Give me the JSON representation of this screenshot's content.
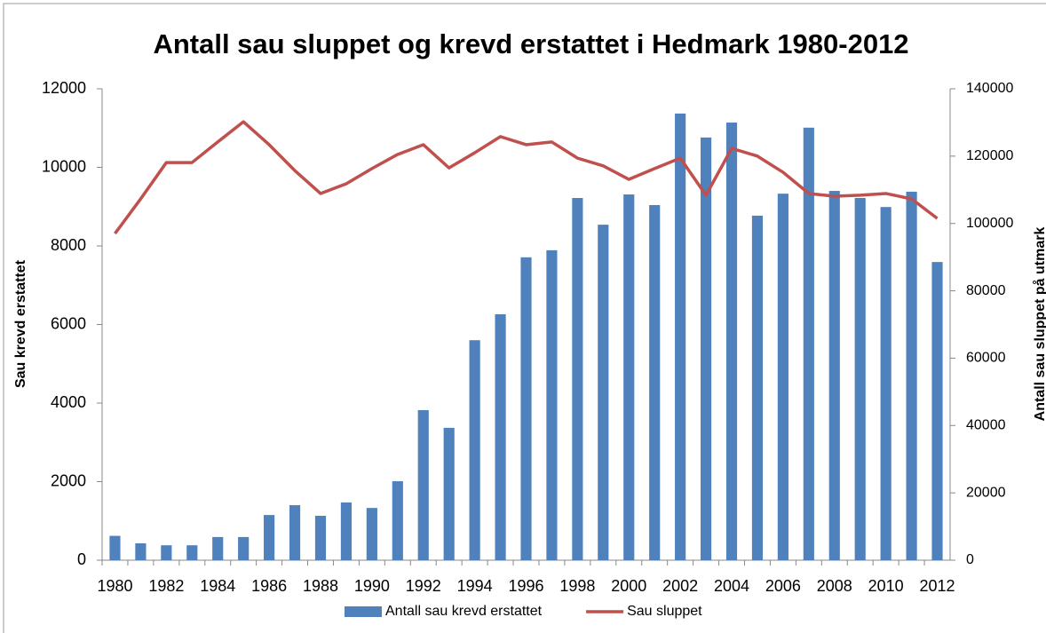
{
  "chart_data": {
    "type": "bar-line",
    "title": "Antall sau sluppet og krevd erstattet i Hedmark 1980-2012",
    "y_label": "Sau krevd erstattet",
    "y2_label": "Antall sau sluppet på utmark",
    "categories": [
      "1980",
      null,
      "1982",
      null,
      "1984",
      null,
      "1986",
      null,
      "1988",
      null,
      "1990",
      null,
      "1992",
      null,
      "1994",
      null,
      "1996",
      null,
      "1998",
      null,
      "2000",
      null,
      "2002",
      null,
      "2004",
      null,
      "2006",
      null,
      "2008",
      null,
      "2010",
      null,
      "2012"
    ],
    "series": [
      {
        "name": "Antall sau krevd erstattet",
        "type": "bar",
        "color": "#4f81bd",
        "values": [
          620,
          430,
          380,
          380,
          590,
          590,
          1150,
          1400,
          1130,
          1470,
          1330,
          2010,
          3820,
          3370,
          5600,
          6260,
          7710,
          7890,
          9220,
          8540,
          9310,
          9040,
          11370,
          10760,
          11140,
          8770,
          9330,
          11010,
          9400,
          9220,
          8990,
          9380,
          7590
        ]
      },
      {
        "name": "Sau sluppet",
        "type": "line",
        "axis": "y2",
        "color": "#c0504d",
        "values": [
          97000,
          107300,
          118100,
          118100,
          124200,
          130200,
          123400,
          115700,
          108900,
          111800,
          116300,
          120500,
          123400,
          116500,
          121000,
          125800,
          123400,
          124200,
          119400,
          117100,
          113100,
          116300,
          119400,
          108400,
          122300,
          120000,
          115200,
          108900,
          108100,
          108400,
          108900,
          107300,
          101500
        ]
      }
    ],
    "ylim": [
      0,
      12000
    ],
    "yticks": [
      0,
      2000,
      4000,
      6000,
      8000,
      10000,
      12000
    ],
    "y2lim": [
      0,
      140000
    ],
    "y2ticks": [
      0,
      20000,
      40000,
      60000,
      80000,
      100000,
      120000,
      140000
    ],
    "grid": false,
    "legend": "bottom"
  }
}
